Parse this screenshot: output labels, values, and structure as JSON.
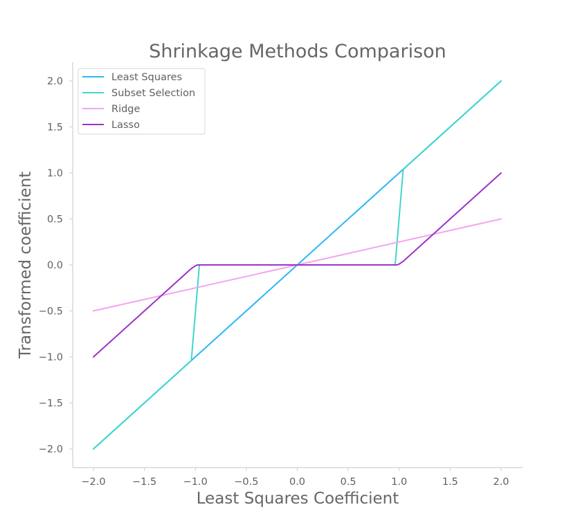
{
  "chart_data": {
    "type": "line",
    "title": "Shrinkage Methods Comparison",
    "xlabel": "Least Squares Coefficient",
    "ylabel": "Transformed coefficient",
    "xlim": [
      -2.2,
      2.2
    ],
    "ylim": [
      -2.2,
      2.2
    ],
    "xticks": [
      "−2.0",
      "−1.5",
      "−1.0",
      "−0.5",
      "0.0",
      "0.5",
      "1.0",
      "1.5",
      "2.0"
    ],
    "xtick_values": [
      -2.0,
      -1.5,
      -1.0,
      -0.5,
      0.0,
      0.5,
      1.0,
      1.5,
      2.0
    ],
    "yticks": [
      "−2.0",
      "−1.5",
      "−1.0",
      "−0.5",
      "0.0",
      "0.5",
      "1.0",
      "1.5",
      "2.0"
    ],
    "ytick_values": [
      -2.0,
      -1.5,
      -1.0,
      -0.5,
      0.0,
      0.5,
      1.0,
      1.5,
      2.0
    ],
    "grid": false,
    "legend_position": "top-left",
    "series": [
      {
        "name": "Least Squares",
        "color": "#29b6f6",
        "x": [
          -2.0,
          2.0
        ],
        "y": [
          -2.0,
          2.0
        ]
      },
      {
        "name": "Subset Selection",
        "color": "#40d6cc",
        "x": [
          -2.0,
          -1.04,
          -0.96,
          0.96,
          1.04,
          2.0
        ],
        "y": [
          -2.0,
          -1.04,
          0.0,
          0.0,
          1.04,
          2.0
        ]
      },
      {
        "name": "Ridge",
        "color": "#f4a3f0",
        "x": [
          -2.0,
          2.0
        ],
        "y": [
          -0.5,
          0.5
        ]
      },
      {
        "name": "Lasso",
        "color": "#9c33c7",
        "x": [
          -2.0,
          -1.04,
          -1.0,
          -0.98,
          0.98,
          1.0,
          1.04,
          2.0
        ],
        "y": [
          -1.0,
          -0.04,
          -0.01,
          0.0,
          0.0,
          0.01,
          0.04,
          1.0
        ]
      }
    ]
  }
}
